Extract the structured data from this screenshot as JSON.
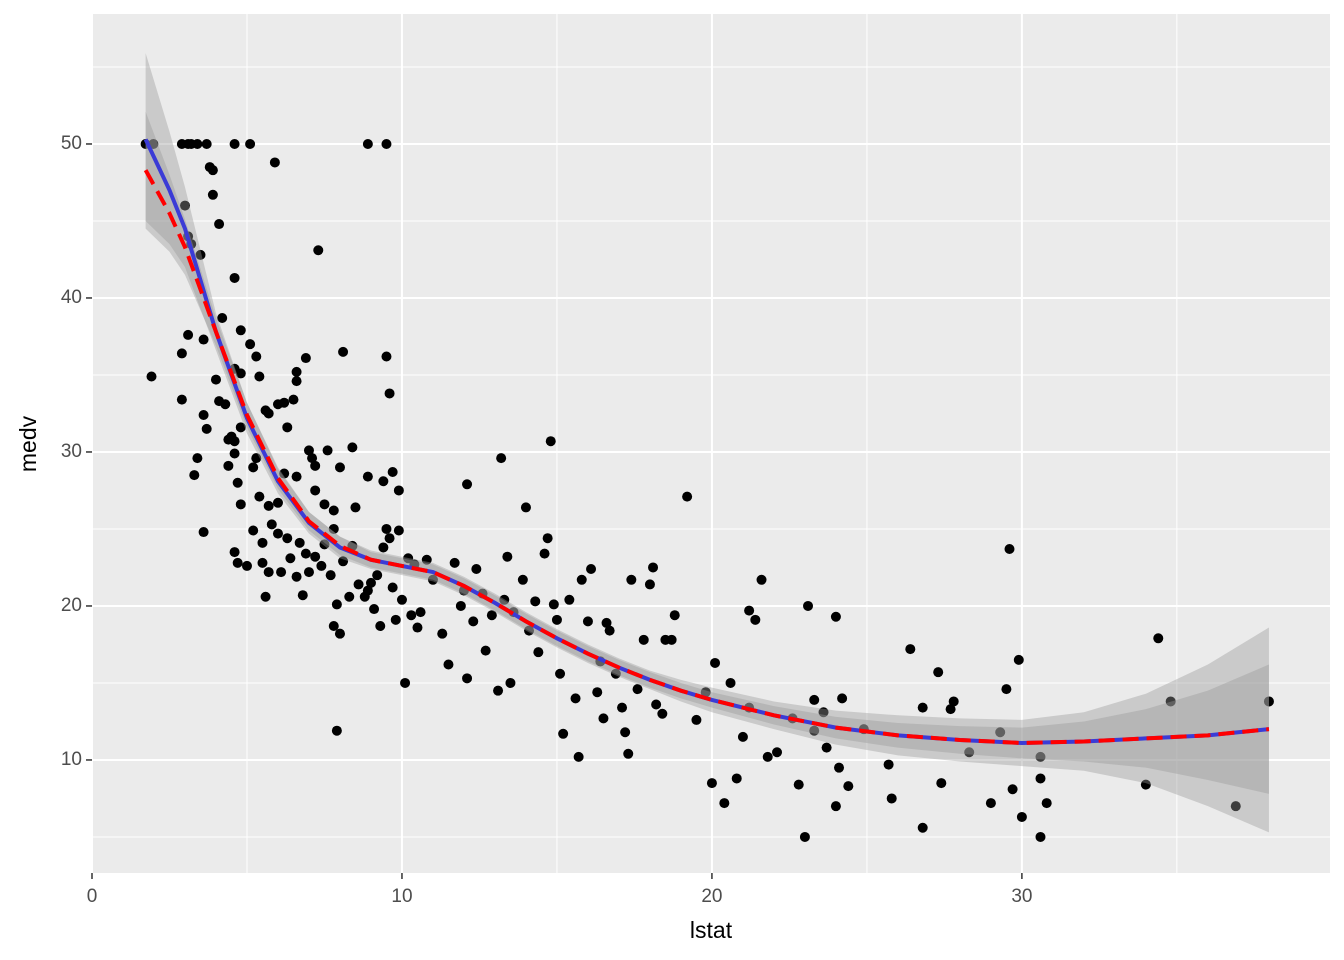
{
  "chart_data": {
    "type": "scatter",
    "xlabel": "lstat",
    "ylabel": "medv",
    "xlim": [
      0,
      39.94
    ],
    "ylim": [
      2.66,
      58.44
    ],
    "xticks": [
      0,
      10,
      20,
      30
    ],
    "yticks": [
      10,
      20,
      30,
      40,
      50
    ],
    "xminor": [
      5,
      15,
      25,
      35
    ],
    "yminor": [
      5,
      15,
      25,
      35,
      45,
      55
    ],
    "grid": true,
    "color": "#000000",
    "x": [
      1.73,
      1.98,
      2.9,
      3.1,
      3.2,
      3.4,
      3.7,
      4.6,
      5.1,
      8.9,
      9.5,
      5.9,
      3.8,
      3.9,
      3.9,
      3.0,
      4.1,
      3.1,
      3.2,
      3.5,
      7.3,
      4.6,
      4.2,
      4.8,
      3.1,
      5.1,
      3.6,
      5.3,
      2.9,
      6.9,
      8.1,
      9.5,
      1.92,
      4.0,
      4.6,
      4.8,
      5.4,
      6.6,
      6.6,
      9.6,
      2.9,
      4.1,
      4.3,
      6.2,
      6.0,
      6.5,
      5.6,
      5.7,
      3.6,
      3.7,
      4.5,
      4.8,
      4.6,
      4.4,
      6.3,
      3.4,
      4.4,
      4.6,
      4.7,
      5.2,
      5.3,
      6.2,
      7.0,
      7.6,
      8.4,
      7.2,
      7.1,
      3.3,
      4.8,
      5.0,
      5.2,
      5.4,
      5.7,
      6.0,
      6.6,
      7.2,
      7.5,
      7.8,
      8.0,
      8.9,
      9.4,
      9.7,
      9.9,
      3.6,
      4.6,
      4.7,
      5.5,
      5.5,
      5.6,
      5.7,
      5.8,
      6.0,
      6.1,
      6.3,
      6.4,
      6.6,
      6.7,
      6.8,
      6.9,
      7.0,
      7.2,
      7.4,
      7.5,
      7.7,
      7.8,
      7.9,
      7.8,
      8.0,
      7.9,
      8.1,
      8.3,
      8.4,
      8.5,
      8.6,
      8.8,
      8.9,
      9.0,
      9.1,
      9.2,
      9.3,
      9.4,
      9.5,
      9.6,
      9.7,
      9.8,
      9.9,
      10.0,
      10.1,
      10.2,
      10.3,
      10.4,
      10.5,
      10.6,
      10.8,
      11.0,
      11.3,
      11.5,
      11.7,
      11.9,
      12.0,
      12.1,
      12.1,
      12.3,
      12.4,
      12.6,
      12.7,
      12.9,
      13.1,
      13.2,
      13.3,
      13.4,
      13.5,
      13.6,
      13.9,
      14.0,
      14.1,
      14.3,
      14.4,
      14.6,
      14.7,
      14.8,
      14.9,
      15.0,
      15.1,
      15.2,
      15.4,
      15.6,
      15.7,
      15.8,
      16.0,
      16.1,
      16.3,
      16.4,
      16.5,
      16.6,
      16.7,
      16.9,
      17.1,
      17.2,
      17.3,
      17.4,
      17.6,
      17.8,
      18.0,
      18.1,
      18.2,
      18.4,
      18.5,
      18.7,
      18.8,
      19.2,
      19.5,
      19.8,
      20.0,
      20.1,
      20.4,
      20.6,
      20.8,
      21.0,
      21.2,
      21.2,
      21.4,
      21.6,
      21.8,
      22.1,
      22.6,
      22.8,
      23.0,
      23.1,
      23.3,
      23.3,
      23.6,
      23.7,
      24.0,
      24.0,
      24.1,
      24.2,
      24.4,
      24.9,
      25.7,
      25.8,
      26.4,
      26.8,
      26.8,
      27.3,
      27.4,
      27.7,
      27.8,
      28.3,
      29.0,
      29.3,
      29.5,
      29.6,
      29.7,
      29.9,
      30.0,
      30.6,
      30.6,
      30.6,
      30.8,
      34.0,
      34.4,
      34.8,
      36.9,
      37.97
    ],
    "values": [
      50,
      50,
      50,
      50,
      50,
      50,
      50,
      50,
      50,
      50,
      50,
      48.8,
      48.5,
      48.3,
      46.7,
      46,
      44.8,
      44,
      43.5,
      42.8,
      43.1,
      41.3,
      38.7,
      37.9,
      37.6,
      37,
      37.3,
      36.2,
      36.4,
      36.1,
      36.5,
      36.2,
      34.9,
      34.7,
      35.4,
      35.1,
      34.9,
      35.2,
      34.6,
      33.8,
      33.4,
      33.3,
      33.1,
      33.2,
      33.1,
      33.4,
      32.7,
      32.5,
      32.4,
      31.5,
      31.0,
      31.6,
      30.7,
      30.8,
      31.6,
      29.6,
      29.1,
      29.9,
      28.0,
      29.0,
      29.6,
      28.6,
      30.1,
      30.1,
      30.3,
      29.1,
      29.6,
      28.5,
      26.6,
      22.6,
      24.9,
      27.1,
      26.5,
      26.7,
      28.4,
      27.5,
      26.6,
      26.2,
      29.0,
      28.4,
      28.1,
      28.7,
      27.5,
      24.8,
      23.5,
      22.8,
      24.1,
      22.8,
      20.6,
      22.2,
      25.3,
      24.7,
      22.2,
      24.4,
      23.1,
      21.9,
      24.1,
      20.7,
      23.4,
      22.2,
      23.2,
      22.6,
      24.0,
      22.0,
      25.0,
      20.1,
      18.7,
      18.2,
      11.9,
      22.9,
      20.6,
      23.9,
      26.4,
      21.4,
      20.6,
      21.0,
      21.5,
      19.8,
      22.0,
      18.7,
      23.8,
      25.0,
      24.4,
      21.2,
      19.1,
      24.9,
      20.4,
      15.0,
      23.1,
      19.4,
      22.7,
      18.6,
      19.6,
      23.0,
      21.7,
      18.2,
      16.2,
      22.8,
      20.0,
      21.0,
      27.9,
      15.3,
      19.0,
      22.4,
      20.8,
      17.1,
      19.4,
      14.5,
      29.6,
      20.4,
      23.2,
      15.0,
      19.6,
      21.7,
      26.4,
      18.4,
      20.3,
      17.0,
      23.4,
      24.4,
      30.7,
      20.1,
      19.1,
      15.6,
      11.7,
      20.4,
      14.0,
      10.2,
      21.7,
      19.0,
      22.4,
      14.4,
      16.4,
      12.7,
      18.9,
      18.4,
      15.6,
      13.4,
      11.8,
      10.4,
      21.7,
      14.6,
      17.8,
      21.4,
      22.5,
      13.6,
      13.0,
      17.8,
      17.8,
      19.4,
      27.1,
      12.6,
      14.4,
      8.5,
      16.3,
      7.2,
      15.0,
      8.8,
      11.5,
      13.4,
      19.7,
      19.1,
      21.7,
      10.2,
      10.5,
      12.7,
      8.4,
      5.0,
      20.0,
      13.9,
      11.9,
      13.1,
      10.8,
      7.0,
      19.3,
      9.5,
      14.0,
      8.3,
      12.0,
      9.7,
      7.5,
      17.2,
      13.4,
      5.6,
      15.7,
      8.5,
      13.3,
      13.8,
      10.5,
      7.2,
      11.8,
      14.6,
      23.7,
      8.1,
      16.5,
      6.3,
      10.2,
      8.8,
      5.0,
      7.2,
      8.4,
      17.9,
      13.8,
      7.0,
      13.8
    ],
    "smooths": [
      {
        "color": "#3b3bd6",
        "linestyle": "solid",
        "band": "#999999",
        "x": [
          1.73,
          2.5,
          3,
          4,
          5,
          6,
          7,
          8,
          9,
          10,
          11,
          12,
          13,
          14,
          15,
          16,
          17,
          18,
          19,
          20,
          22,
          24,
          26,
          28,
          30,
          32,
          34,
          36,
          37.97
        ],
        "values": [
          50.3,
          47,
          44.5,
          37.8,
          32.2,
          28.1,
          25.4,
          23.8,
          23.0,
          22.6,
          22.2,
          21.3,
          20.2,
          19.0,
          17.9,
          16.9,
          16.0,
          15.2,
          14.5,
          13.9,
          12.9,
          12.1,
          11.6,
          11.3,
          11.1,
          11.2,
          11.4,
          11.6,
          12.0
        ],
        "lower": [
          45.0,
          43.5,
          42.0,
          36.6,
          31.2,
          27.3,
          24.7,
          23.1,
          22.4,
          22.0,
          21.6,
          20.7,
          19.6,
          18.4,
          17.3,
          16.3,
          15.4,
          14.6,
          13.8,
          13.1,
          12.0,
          11.0,
          10.3,
          9.9,
          9.6,
          9.3,
          8.5,
          7.0,
          5.3
        ],
        "upper": [
          55.9,
          50.8,
          47.2,
          39.0,
          33.2,
          28.9,
          26.1,
          24.5,
          23.6,
          23.2,
          22.8,
          21.9,
          20.8,
          19.6,
          18.5,
          17.5,
          16.6,
          15.8,
          15.2,
          14.7,
          13.8,
          13.2,
          12.9,
          12.7,
          12.6,
          13.1,
          14.3,
          16.2,
          18.6
        ]
      },
      {
        "color": "#ff0000",
        "linestyle": "dashed",
        "band": "#999999",
        "x": [
          1.73,
          2.5,
          3,
          4,
          5,
          6,
          7,
          8,
          9,
          10,
          11,
          12,
          13,
          14,
          15,
          16,
          17,
          18,
          19,
          20,
          22,
          24,
          26,
          28,
          30,
          32,
          34,
          36,
          37.97
        ],
        "values": [
          48.3,
          45.5,
          43.3,
          37.8,
          32.4,
          28.3,
          25.5,
          23.9,
          23.0,
          22.6,
          22.2,
          21.3,
          20.2,
          19.0,
          17.9,
          16.9,
          16.0,
          15.2,
          14.5,
          13.9,
          12.9,
          12.1,
          11.6,
          11.3,
          11.1,
          11.2,
          11.4,
          11.6,
          12.0
        ],
        "lower": [
          44.5,
          43.0,
          41.5,
          36.9,
          31.6,
          27.6,
          24.9,
          23.3,
          22.5,
          22.1,
          21.7,
          20.8,
          19.7,
          18.5,
          17.4,
          16.4,
          15.5,
          14.7,
          14.0,
          13.4,
          12.3,
          11.4,
          10.8,
          10.4,
          10.1,
          9.9,
          9.5,
          8.7,
          7.8
        ],
        "upper": [
          52.1,
          48.0,
          45.1,
          38.7,
          33.2,
          29.0,
          26.1,
          24.5,
          23.5,
          23.1,
          22.7,
          21.8,
          20.7,
          19.5,
          18.4,
          17.4,
          16.5,
          15.7,
          15.0,
          14.4,
          13.5,
          12.8,
          12.4,
          12.2,
          12.1,
          12.5,
          13.3,
          14.5,
          16.2
        ]
      }
    ]
  }
}
